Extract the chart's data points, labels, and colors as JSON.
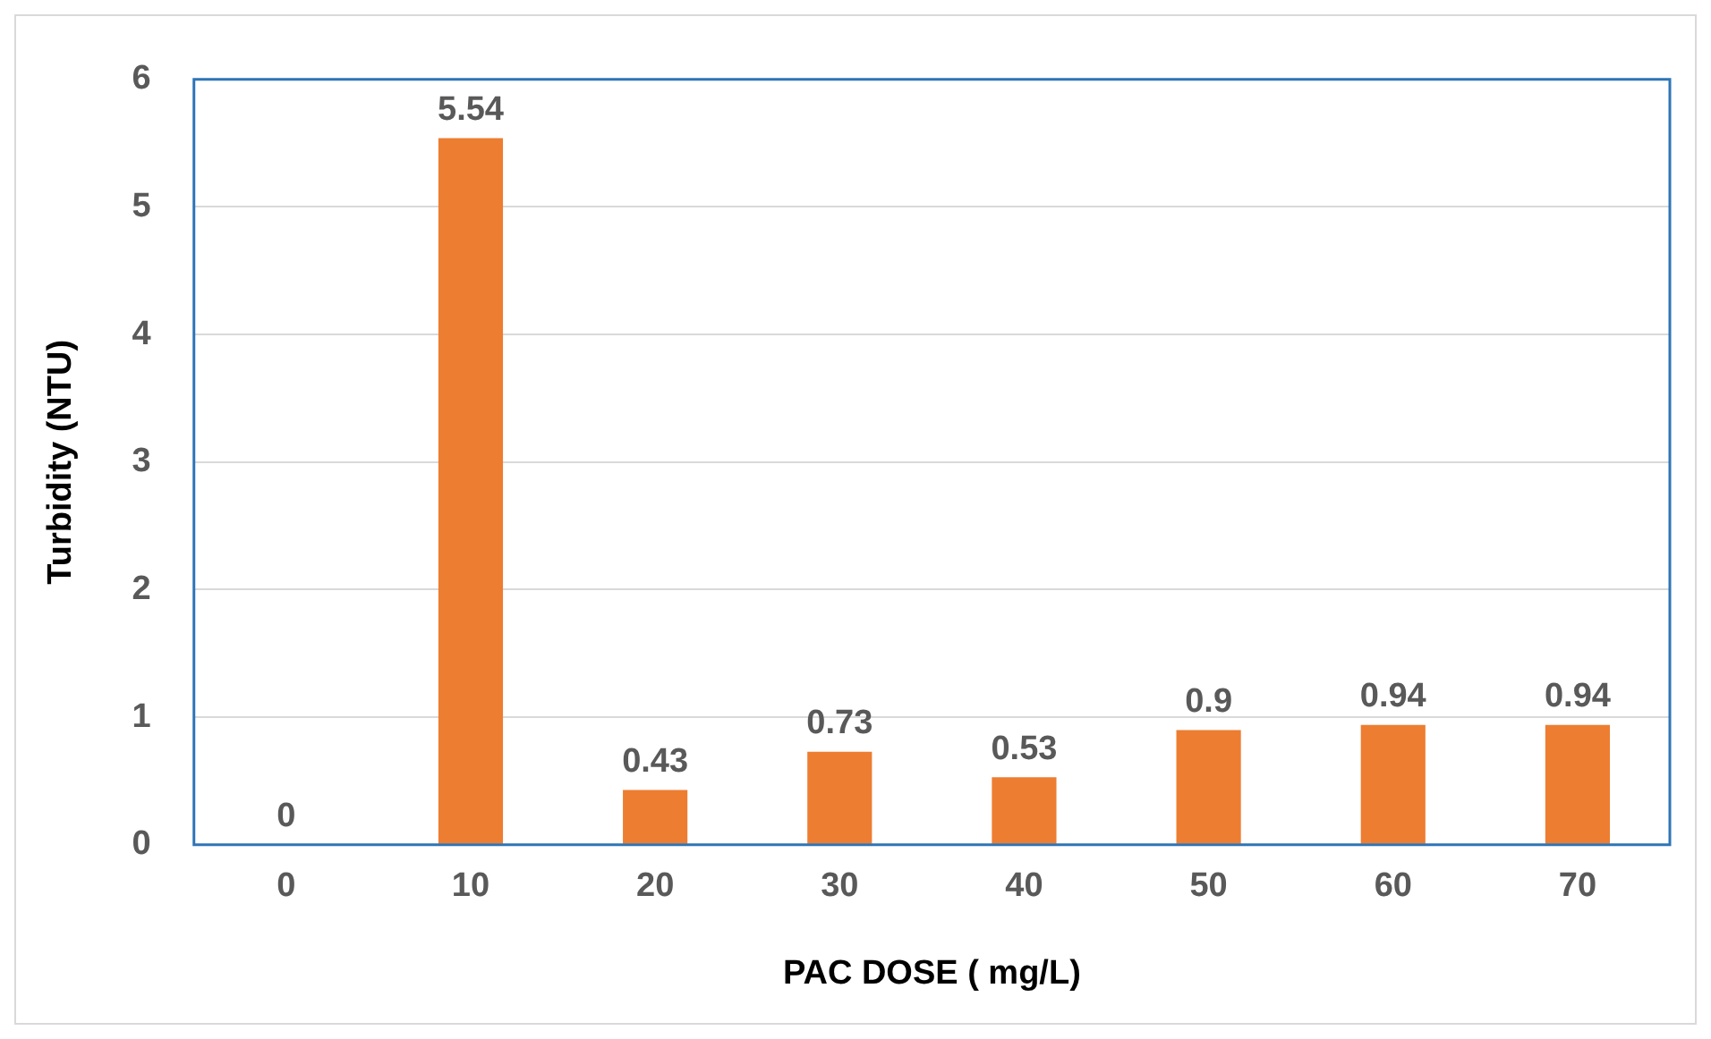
{
  "chart_data": {
    "type": "bar",
    "xlabel": "PAC DOSE ( mg/L)",
    "ylabel": "Turbidity (NTU)",
    "categories": [
      "0",
      "10",
      "20",
      "30",
      "40",
      "50",
      "60",
      "70"
    ],
    "values": [
      0,
      5.54,
      0.43,
      0.73,
      0.53,
      0.9,
      0.94,
      0.94
    ],
    "color": "#ed7d31",
    "ylim": [
      0,
      6
    ],
    "yticks": [
      0,
      1,
      2,
      3,
      4,
      5,
      6
    ],
    "grid": "y",
    "data_labels": true,
    "legend": false
  }
}
